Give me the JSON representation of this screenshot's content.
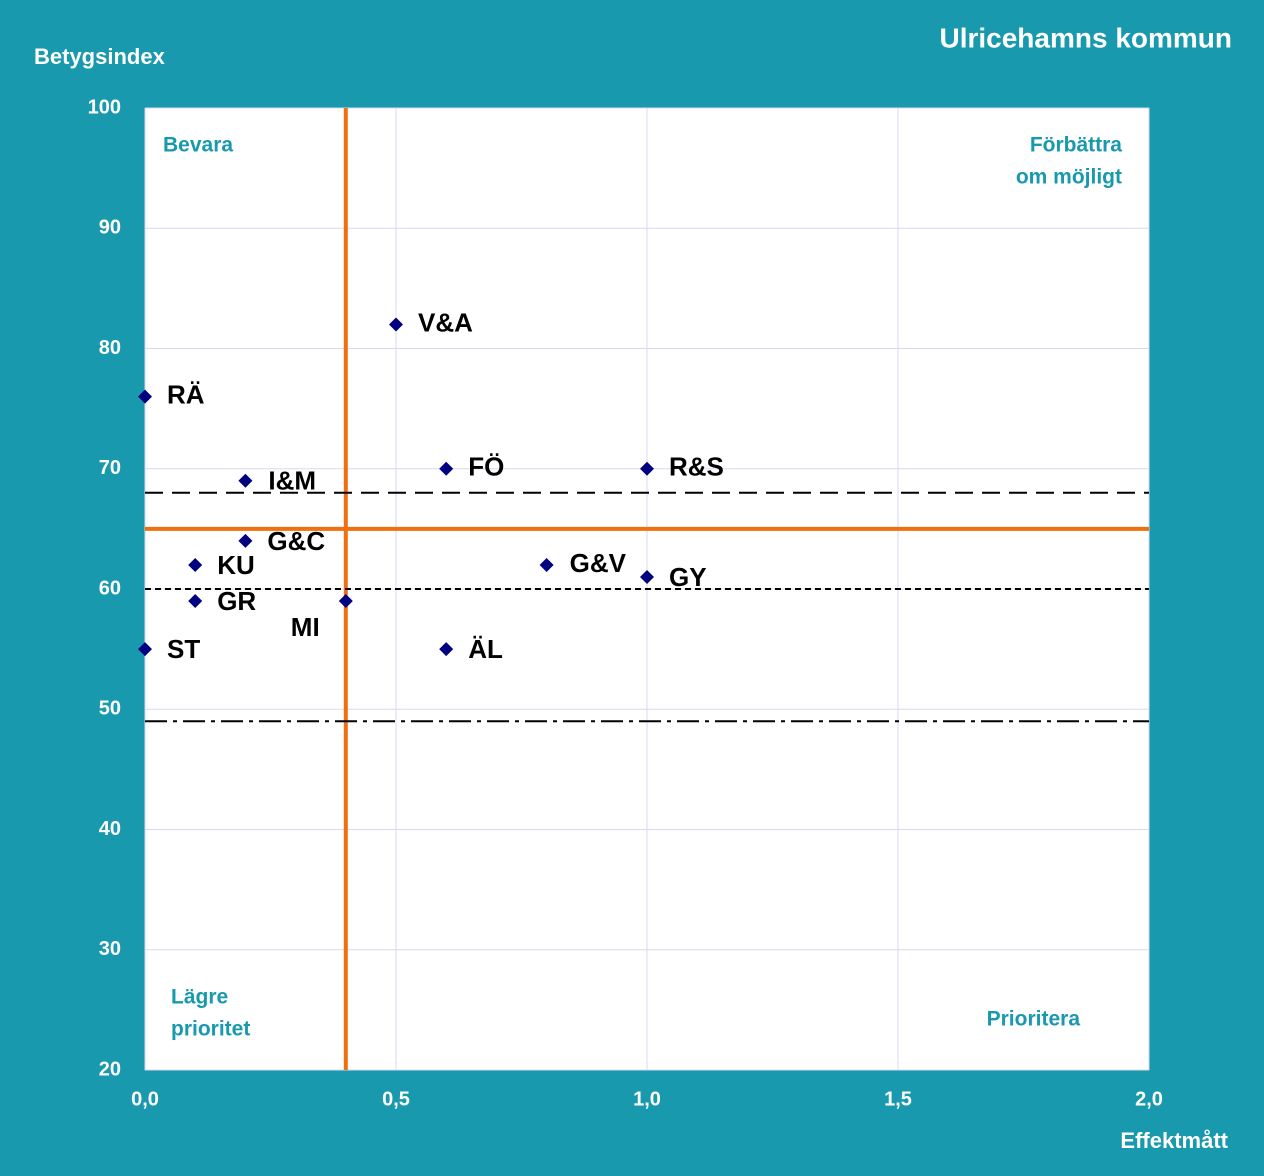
{
  "chart_data": {
    "type": "scatter",
    "title": "Ulricehamns kommun",
    "x_label": "Effektmått",
    "y_label": "Betygsindex",
    "xlim": [
      0,
      2
    ],
    "ylim": [
      20,
      100
    ],
    "xticks": [
      {
        "value": 0,
        "label": "0,0"
      },
      {
        "value": 0.5,
        "label": "0,5"
      },
      {
        "value": 1,
        "label": "1,0"
      },
      {
        "value": 1.5,
        "label": "1,5"
      },
      {
        "value": 2,
        "label": "2,0"
      }
    ],
    "yticks": [
      20,
      30,
      40,
      50,
      60,
      70,
      80,
      90,
      100
    ],
    "grid": true,
    "series": [
      {
        "color": "#000080",
        "labels": [
          "RÄ",
          "V&A",
          "I&M",
          "FÖ",
          "R&S",
          "G&C",
          "KU",
          "G&V",
          "GY",
          "GR",
          "MI",
          "ST",
          "ÄL"
        ],
        "x": [
          0,
          0.5,
          0.2,
          0.6,
          1,
          0.2,
          0.1,
          0.8,
          1,
          0.1,
          0.4,
          0,
          0.6
        ],
        "values": [
          76,
          82,
          69,
          70,
          70,
          64,
          62,
          62,
          61,
          59,
          59,
          55,
          55
        ]
      }
    ],
    "reference_lines": [
      {
        "axis": "x",
        "value": 0.4,
        "color": "#f07010",
        "style": "solid"
      },
      {
        "axis": "y",
        "value": 65,
        "color": "#f07010",
        "style": "solid"
      },
      {
        "axis": "y",
        "value": 68,
        "color": "#000000",
        "style": "dashed"
      },
      {
        "axis": "y",
        "value": 60,
        "color": "#000000",
        "style": "dotted"
      },
      {
        "axis": "y",
        "value": 49,
        "color": "#000000",
        "style": "dashdot"
      }
    ],
    "annotations": [
      {
        "lines": [
          "Bevara"
        ]
      },
      {
        "lines": [
          "Förbättra",
          "om möjligt"
        ]
      },
      {
        "lines": [
          "Lägre",
          "prioritet"
        ]
      },
      {
        "lines": [
          "Prioritera"
        ]
      }
    ]
  }
}
